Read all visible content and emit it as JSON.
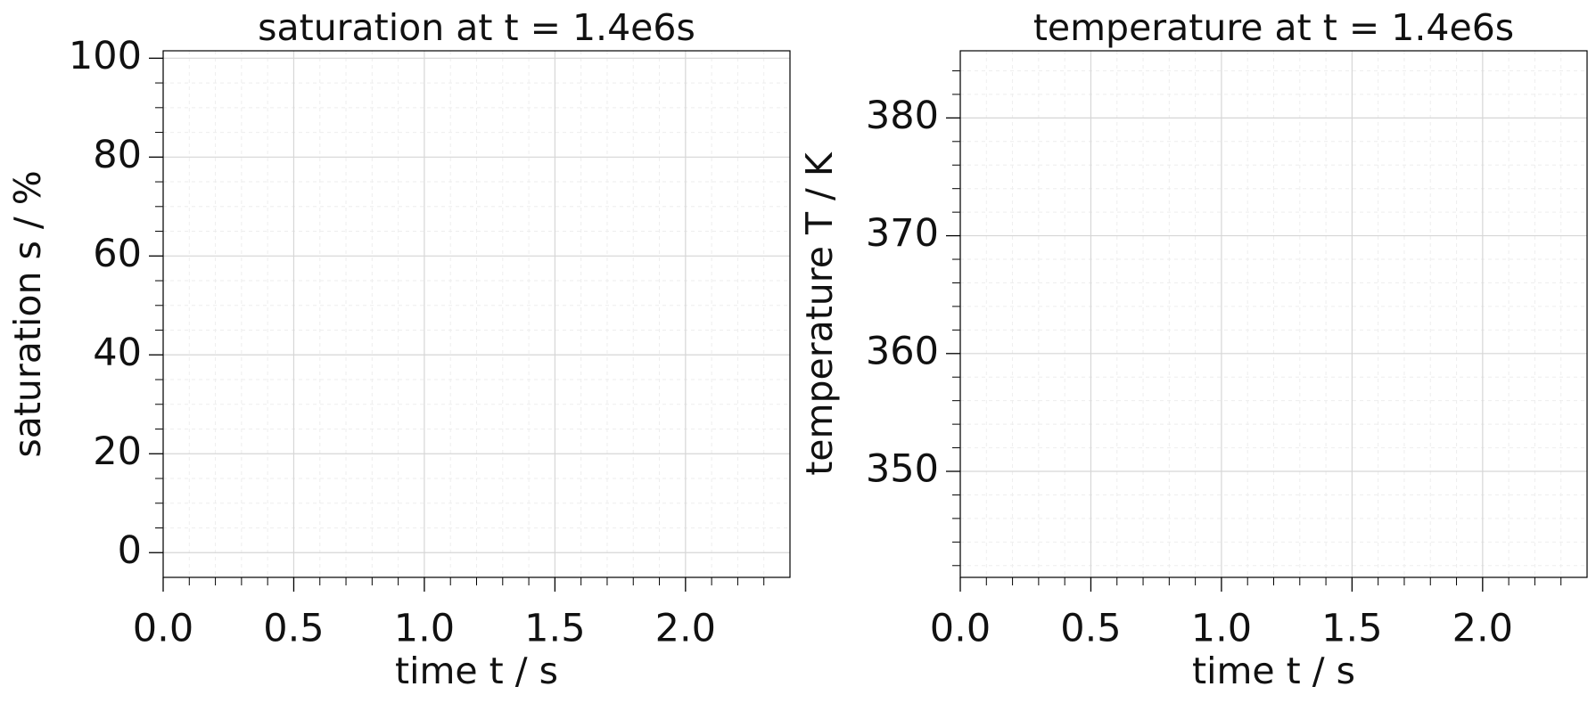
{
  "chart_data": [
    {
      "type": "line",
      "title": "saturation at t = 1.4e6s",
      "x_label": "time t / s",
      "y_label": "saturation s / %",
      "xlim": [
        0,
        2.4
      ],
      "xticks": [
        {
          "value": 0,
          "label": "0.0"
        },
        0.5,
        {
          "value": 1,
          "label": "1.0"
        },
        1.5,
        {
          "value": 2,
          "label": "2.0"
        }
      ],
      "xminorticks": [
        0.1,
        0.2,
        0.3,
        0.4,
        0.6,
        0.7,
        0.8,
        0.9,
        1.1,
        1.2,
        1.3,
        1.4,
        1.6,
        1.7,
        1.8,
        1.9,
        2.1,
        2.2,
        2.3
      ],
      "ylim": [
        -5,
        101.5
      ],
      "yticks": [
        0,
        20,
        40,
        60,
        80,
        100
      ],
      "yminorticks": [
        5,
        10,
        15,
        25,
        30,
        35,
        45,
        50,
        55,
        65,
        70,
        75,
        85,
        90,
        95
      ],
      "grid": true
    },
    {
      "type": "line",
      "title": "temperature at t = 1.4e6s",
      "x_label": "time t / s",
      "y_label": "temperature T / K",
      "xlim": [
        0,
        2.4
      ],
      "xticks": [
        {
          "value": 0,
          "label": "0.0"
        },
        0.5,
        {
          "value": 1,
          "label": "1.0"
        },
        1.5,
        {
          "value": 2,
          "label": "2.0"
        }
      ],
      "xminorticks": [
        0.1,
        0.2,
        0.3,
        0.4,
        0.6,
        0.7,
        0.8,
        0.9,
        1.1,
        1.2,
        1.3,
        1.4,
        1.6,
        1.7,
        1.8,
        1.9,
        2.1,
        2.2,
        2.3
      ],
      "ylim": [
        341,
        385.7
      ],
      "yticks": [
        350,
        360,
        370,
        380
      ],
      "yminorticks": [
        342,
        344,
        346,
        348,
        352,
        354,
        356,
        358,
        362,
        364,
        366,
        368,
        372,
        374,
        376,
        378,
        382,
        384
      ],
      "grid": true
    }
  ]
}
